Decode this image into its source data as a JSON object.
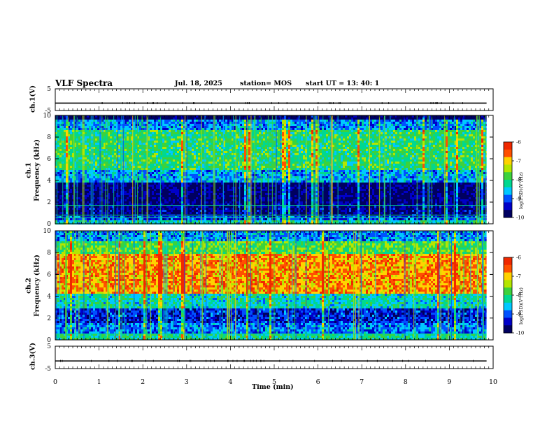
{
  "header": {
    "title": "VLF Spectra",
    "date": "Jul. 18, 2025",
    "station": "station= MOS",
    "start": "start UT = 13: 40: 1"
  },
  "colors": {
    "colormap": [
      "#000060",
      "#0000c8",
      "#0050ff",
      "#00c8ff",
      "#00d890",
      "#3cd23c",
      "#b4e600",
      "#ffd200",
      "#ff5000",
      "#f02800",
      "#ff9090",
      "#ffffff"
    ]
  },
  "chart_data": [
    {
      "type": "line",
      "name": "ch.1 voltage",
      "ylabel": "ch.1(V)",
      "ylim": [
        -5,
        5
      ],
      "yticks": [
        "5",
        "-5"
      ],
      "xlim": [
        0,
        10
      ],
      "level": -1.6
    },
    {
      "type": "heatmap",
      "name": "ch.1 spectrogram",
      "ylabel_top": "ch.1",
      "ylabel": "Frequency (kHz)",
      "ylim": [
        0,
        10
      ],
      "yticks": [
        "0",
        "2",
        "4",
        "6",
        "8",
        "10"
      ],
      "xlim": [
        0,
        10
      ],
      "data_xmax": 9.85,
      "colorbar": {
        "label": "log(PSD)(V²/Hz)",
        "ticks": [
          "-6",
          "-7",
          "-8",
          "-9",
          "-10"
        ],
        "range": [
          -10,
          -6
        ]
      },
      "bands": [
        {
          "f0": 0.0,
          "f1": 0.3,
          "level": 0.42
        },
        {
          "f0": 0.3,
          "f1": 0.8,
          "level": 0.22
        },
        {
          "f0": 0.8,
          "f1": 1.8,
          "level": 0.08
        },
        {
          "f0": 1.8,
          "f1": 3.8,
          "level": 0.06
        },
        {
          "f0": 3.8,
          "f1": 5.0,
          "level": 0.32
        },
        {
          "f0": 5.0,
          "f1": 8.7,
          "level": 0.5
        },
        {
          "f0": 8.7,
          "f1": 9.6,
          "level": 0.3
        },
        {
          "f0": 9.6,
          "f1": 10.0,
          "level": 0.0
        }
      ],
      "lines_khz": [
        0.55,
        0.8,
        1.7
      ]
    },
    {
      "type": "heatmap",
      "name": "ch.2 spectrogram",
      "ylabel_top": "ch.2",
      "ylabel": "Frequency (kHz)",
      "ylim": [
        0,
        10
      ],
      "yticks": [
        "0",
        "2",
        "4",
        "6",
        "8",
        "10"
      ],
      "xlim": [
        0,
        10
      ],
      "data_xmax": 9.85,
      "colorbar": {
        "label": "log(PSD)(V²/Hz)",
        "ticks": [
          "-6",
          "-7",
          "-8",
          "-9",
          "-10"
        ],
        "range": [
          -10,
          -6
        ]
      },
      "bands": [
        {
          "f0": 0.0,
          "f1": 0.5,
          "level": 0.45
        },
        {
          "f0": 0.5,
          "f1": 1.5,
          "level": 0.28
        },
        {
          "f0": 1.5,
          "f1": 2.8,
          "level": 0.18
        },
        {
          "f0": 2.8,
          "f1": 4.2,
          "level": 0.42
        },
        {
          "f0": 4.2,
          "f1": 7.8,
          "level": 0.8
        },
        {
          "f0": 7.8,
          "f1": 9.0,
          "level": 0.55
        },
        {
          "f0": 9.0,
          "f1": 10.0,
          "level": 0.3
        }
      ],
      "lines_khz": [
        0.55
      ]
    },
    {
      "type": "line",
      "name": "ch.3 voltage",
      "ylabel": "ch.3(V)",
      "ylim": [
        -5,
        5
      ],
      "yticks": [
        "5",
        "-5"
      ],
      "xlim": [
        0,
        10
      ],
      "level": -1.6
    }
  ],
  "xaxis": {
    "label": "Time (min)",
    "ticks": [
      "0",
      "1",
      "2",
      "3",
      "4",
      "5",
      "6",
      "7",
      "8",
      "9",
      "10"
    ]
  }
}
